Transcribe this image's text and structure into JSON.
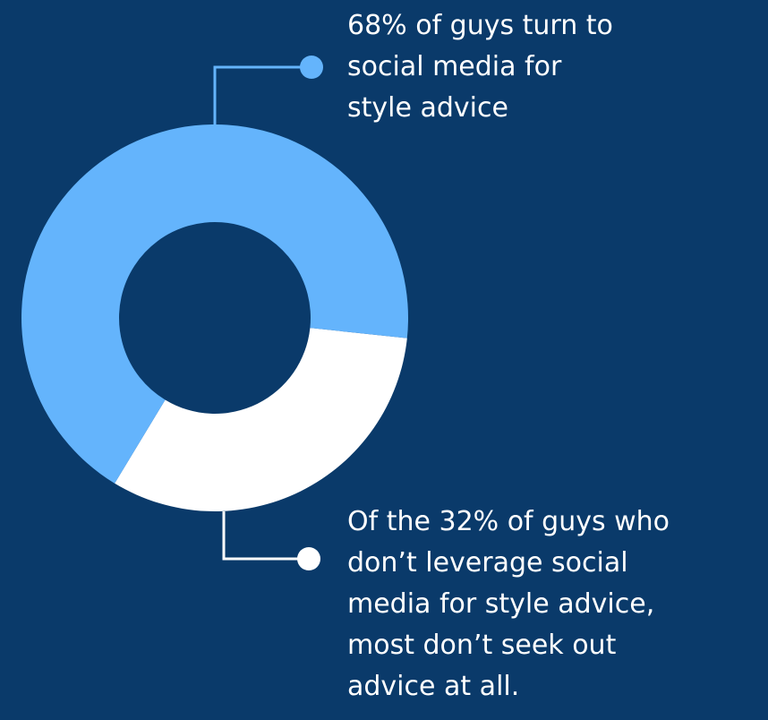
{
  "chart_data": {
    "type": "pie",
    "categories": [
      "social media",
      "no social media"
    ],
    "values": [
      68,
      32
    ],
    "colors": [
      "#64b4fc",
      "#ffffff"
    ],
    "annotations": [
      "68% of guys turn to\nsocial media for\nstyle advice",
      "Of the 32% of guys who\ndon’t leverage social\nmedia for style advice,\nmost don’t seek out\nadvice at all."
    ]
  },
  "background_color": "#0a3a6a"
}
